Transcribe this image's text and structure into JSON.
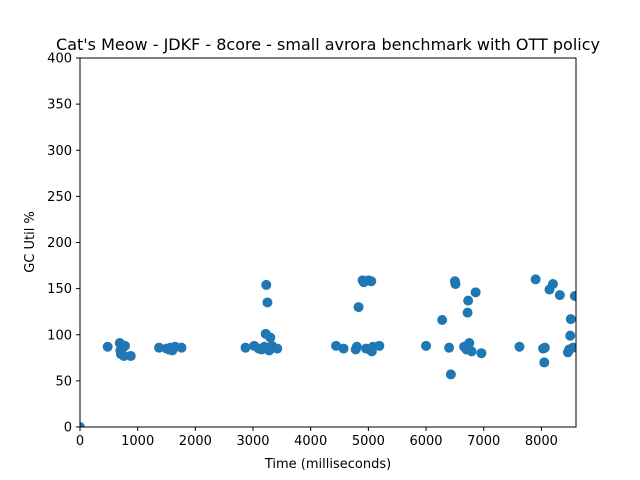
{
  "chart_data": {
    "type": "scatter",
    "title": "Cat's Meow - JDKF - 8core -  small avrora benchmark with OTT policy",
    "xlabel": "Time (milliseconds)",
    "ylabel": "GC Util %",
    "xlim": [
      0,
      8600
    ],
    "ylim": [
      0,
      400
    ],
    "x_ticks": [
      0,
      1000,
      2000,
      3000,
      4000,
      5000,
      6000,
      7000,
      8000
    ],
    "y_ticks": [
      0,
      50,
      100,
      150,
      200,
      250,
      300,
      350,
      400
    ],
    "grid": false,
    "marker_color": "#1f77b4",
    "series": [
      {
        "points": [
          [
            0,
            0
          ],
          [
            480,
            87
          ],
          [
            690,
            91
          ],
          [
            700,
            83
          ],
          [
            710,
            79
          ],
          [
            730,
            85
          ],
          [
            760,
            77
          ],
          [
            780,
            88
          ],
          [
            880,
            77
          ],
          [
            1370,
            86
          ],
          [
            1500,
            85
          ],
          [
            1540,
            84
          ],
          [
            1570,
            86
          ],
          [
            1600,
            83
          ],
          [
            1650,
            87
          ],
          [
            1760,
            86
          ],
          [
            2870,
            86
          ],
          [
            3020,
            88
          ],
          [
            3100,
            85
          ],
          [
            3150,
            84
          ],
          [
            3200,
            87
          ],
          [
            3220,
            101
          ],
          [
            3230,
            154
          ],
          [
            3250,
            135
          ],
          [
            3270,
            85
          ],
          [
            3280,
            83
          ],
          [
            3300,
            97
          ],
          [
            3330,
            88
          ],
          [
            3420,
            85
          ],
          [
            4440,
            88
          ],
          [
            4570,
            85
          ],
          [
            4780,
            84
          ],
          [
            4800,
            87
          ],
          [
            4830,
            130
          ],
          [
            4900,
            159
          ],
          [
            4920,
            157
          ],
          [
            4960,
            85
          ],
          [
            5000,
            159
          ],
          [
            5020,
            84
          ],
          [
            5050,
            158
          ],
          [
            5060,
            82
          ],
          [
            5080,
            87
          ],
          [
            5190,
            88
          ],
          [
            6000,
            88
          ],
          [
            6280,
            116
          ],
          [
            6400,
            86
          ],
          [
            6430,
            57
          ],
          [
            6500,
            158
          ],
          [
            6510,
            155
          ],
          [
            6660,
            87
          ],
          [
            6700,
            84
          ],
          [
            6720,
            124
          ],
          [
            6730,
            137
          ],
          [
            6750,
            91
          ],
          [
            6790,
            82
          ],
          [
            6860,
            146
          ],
          [
            6960,
            80
          ],
          [
            7620,
            87
          ],
          [
            7900,
            160
          ],
          [
            8030,
            85
          ],
          [
            8050,
            70
          ],
          [
            8060,
            86
          ],
          [
            8140,
            149
          ],
          [
            8200,
            155
          ],
          [
            8320,
            143
          ],
          [
            8460,
            81
          ],
          [
            8480,
            84
          ],
          [
            8500,
            99
          ],
          [
            8510,
            117
          ],
          [
            8550,
            86
          ],
          [
            8580,
            142
          ]
        ]
      }
    ]
  }
}
